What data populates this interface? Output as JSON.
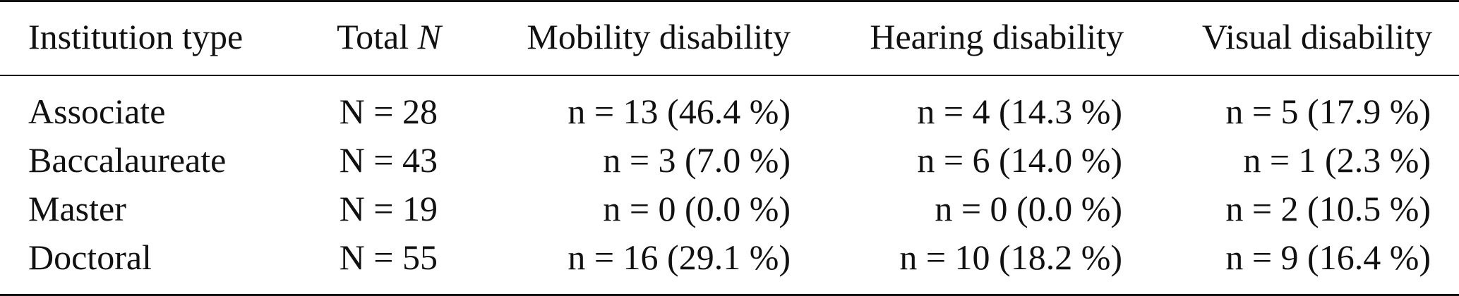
{
  "table": {
    "headers": {
      "institution": "Institution type",
      "total_prefix": "Total ",
      "total_var": "N",
      "mobility": "Mobility disability",
      "hearing": "Hearing disability",
      "visual": "Visual disability"
    },
    "rows": [
      {
        "institution": "Associate",
        "total": "N = 28",
        "mobility": "n = 13 (46.4 %)",
        "hearing": "n = 4 (14.3 %)",
        "visual": "n = 5 (17.9 %)"
      },
      {
        "institution": "Baccalaureate",
        "total": "N = 43",
        "mobility": "n = 3 (7.0 %)",
        "hearing": "n = 6 (14.0 %)",
        "visual": "n = 1 (2.3 %)"
      },
      {
        "institution": "Master",
        "total": "N = 19",
        "mobility": "n = 0 (0.0 %)",
        "hearing": "n = 0 (0.0 %)",
        "visual": "n = 2 (10.5 %)"
      },
      {
        "institution": "Doctoral",
        "total": "N = 55",
        "mobility": "n = 16 (29.1 %)",
        "hearing": "n = 10 (18.2 %)",
        "visual": "n = 9 (16.4 %)"
      }
    ]
  }
}
